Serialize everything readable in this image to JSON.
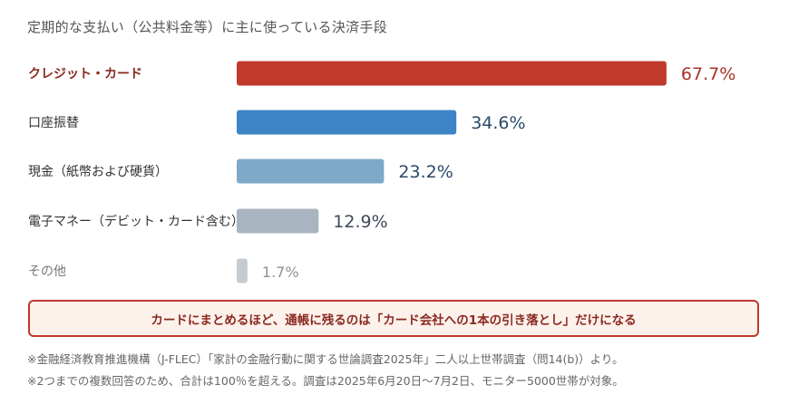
{
  "title": "定期的な支払い（公共料金等）に主に使っている決済手段",
  "note": "カードにまとめるほど、通帳に残るのは「カード会社への1本の引き落とし」だけになる",
  "footnotes": [
    "※金融経済教育推進機構（J-FLEC）「家計の金融行動に関する世論調査2025年」二人以上世帯調査（問14(b)）より。",
    "※2つまでの複数回答のため、合計は100％を超える。調査は2025年6月20日～7月2日、モニター5000世帯が対象。"
  ],
  "chart_data": {
    "type": "bar",
    "orientation": "horizontal",
    "categories": [
      "クレジット・カード",
      "口座振替",
      "現金（紙幣および硬貨）",
      "電子マネー（デビット・カード含む）",
      "その他"
    ],
    "values": [
      67.7,
      34.6,
      23.2,
      12.9,
      1.7
    ],
    "value_labels": [
      "67.7%",
      "34.6%",
      "23.2%",
      "12.9%",
      "1.7%"
    ],
    "unit": "%",
    "bar_colors": [
      "#c0392b",
      "#3d85c6",
      "#7fa9c9",
      "#a8b4bf",
      "#c5cbd1"
    ],
    "label_colors": [
      "#a93226",
      "#2c4a6b",
      "#2c4a6b",
      "#3e4b58",
      "#8a9299"
    ],
    "highlight_index": 0,
    "grid": false,
    "legend": "none"
  }
}
